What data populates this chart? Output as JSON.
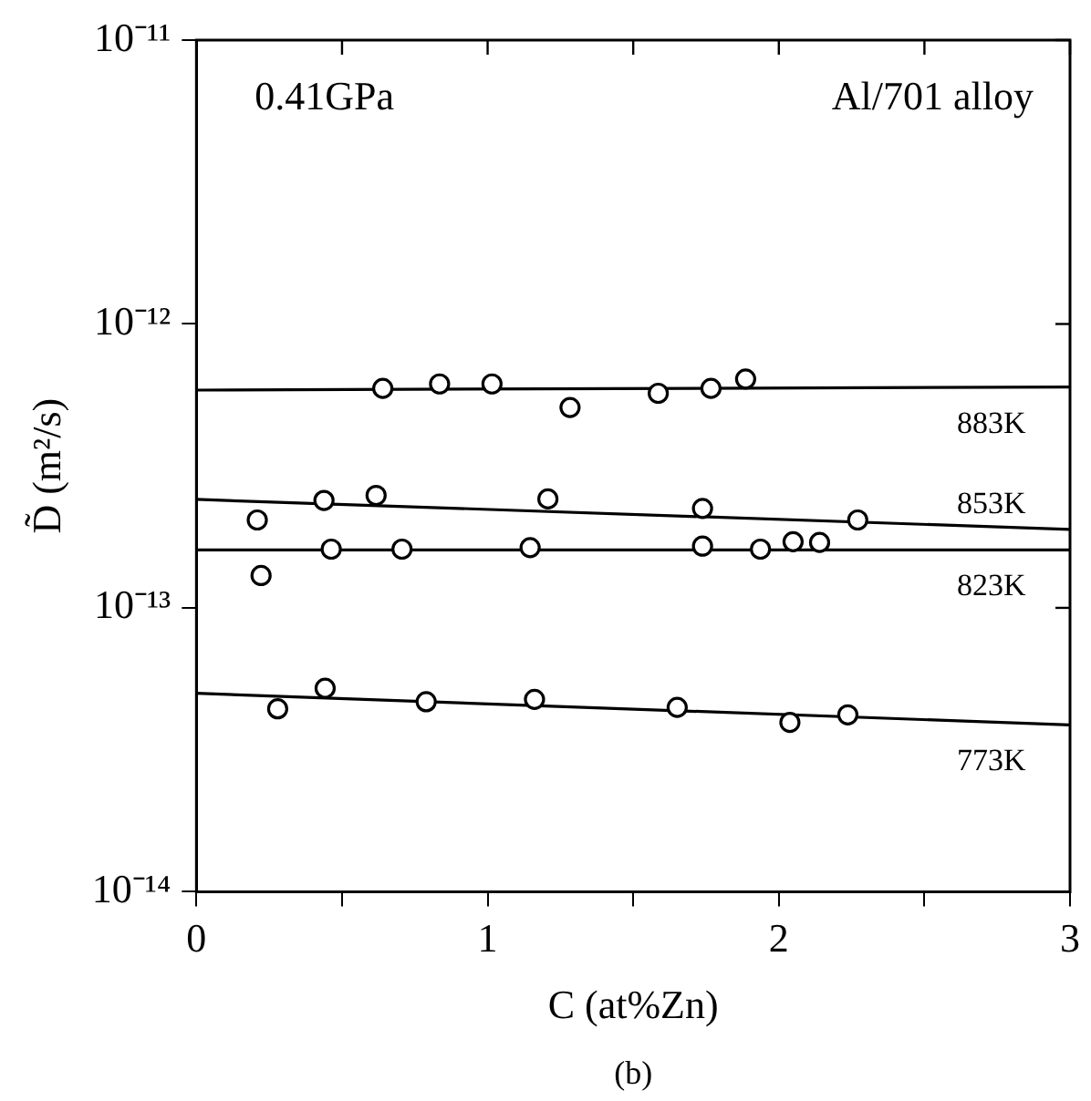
{
  "chart_data": {
    "type": "scatter",
    "xlabel": "C (at%Zn)",
    "ylabel": "D̃ (m²/s)",
    "log": "y",
    "xlim": [
      0,
      3
    ],
    "xticks": [
      0,
      {
        "value": 0.5,
        "label": null
      },
      1,
      {
        "value": 1.5,
        "label": null
      },
      2,
      {
        "value": 2.5,
        "label": null
      },
      3
    ],
    "ylim": [
      1e-14,
      1e-11
    ],
    "yticks": [
      {
        "value": 1e-14,
        "label": "10⁻¹⁴"
      },
      {
        "value": 1e-13,
        "label": "10⁻¹³"
      },
      {
        "value": 1e-12,
        "label": "10⁻¹²"
      },
      {
        "value": 1e-11,
        "label": "10⁻¹¹"
      }
    ],
    "grid": false,
    "legend": false,
    "marker": "circle",
    "series": [
      {
        "color": "#000000",
        "x": [
          0.64,
          0.835,
          1.015,
          1.283,
          1.586,
          1.767,
          1.886
        ],
        "values": [
          5.93e-13,
          6.15e-13,
          6.15e-13,
          5.08e-13,
          5.7e-13,
          5.93e-13,
          6.4e-13
        ]
      },
      {
        "color": "#000000",
        "x": [
          0.209,
          0.438,
          0.617,
          1.207,
          1.738,
          2.271
        ],
        "values": [
          2.04e-13,
          2.39e-13,
          2.49e-13,
          2.42e-13,
          2.24e-13,
          2.04e-13
        ]
      },
      {
        "color": "#000000",
        "x": [
          0.222,
          0.463,
          0.706,
          1.146,
          1.738,
          1.937,
          2.049,
          2.14
        ],
        "values": [
          1.3e-13,
          1.61e-13,
          1.61e-13,
          1.63e-13,
          1.65e-13,
          1.61e-13,
          1.71e-13,
          1.7e-13
        ]
      },
      {
        "color": "#000000",
        "x": [
          0.279,
          0.442,
          0.789,
          1.161,
          1.651,
          2.038,
          2.237
        ],
        "values": [
          4.41e-14,
          5.21e-14,
          4.67e-14,
          4.76e-14,
          4.46e-14,
          3.95e-14,
          4.2e-14
        ]
      },
      {
        "type": "line",
        "name": "883K",
        "color": "#000000",
        "marker": "none",
        "x": [
          0,
          3
        ],
        "values": [
          5.85e-13,
          6e-13
        ]
      },
      {
        "type": "line",
        "name": "853K",
        "color": "#000000",
        "marker": "none",
        "x": [
          0,
          3
        ],
        "values": [
          2.41e-13,
          1.89e-13
        ]
      },
      {
        "type": "line",
        "name": "823K",
        "color": "#000000",
        "marker": "none",
        "x": [
          0,
          3
        ],
        "values": [
          1.6e-13,
          1.6e-13
        ]
      },
      {
        "type": "line",
        "name": "773K",
        "color": "#000000",
        "marker": "none",
        "x": [
          0,
          3
        ],
        "values": [
          5e-14,
          3.87e-14
        ]
      }
    ],
    "annotations": [
      "0.41GPa",
      "Al/701 alloy",
      "(b)"
    ]
  }
}
